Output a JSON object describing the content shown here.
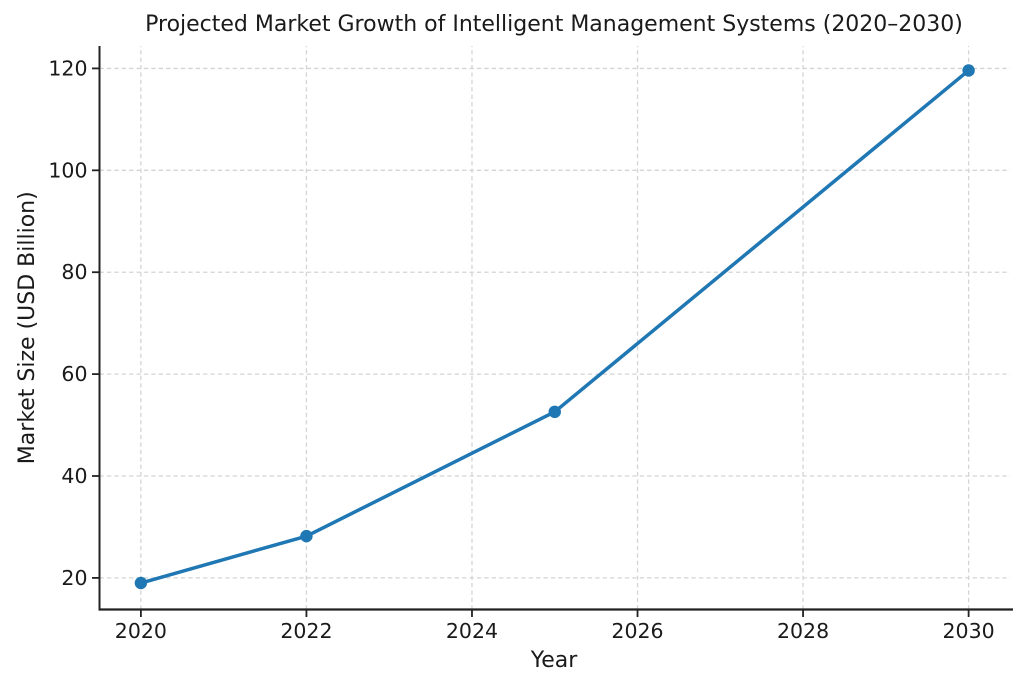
{
  "chart_data": {
    "type": "line",
    "title": "Projected Market Growth of Intelligent Management Systems (2020–2030)",
    "xlabel": "Year",
    "ylabel": "Market Size (USD Billion)",
    "x": [
      2020,
      2022,
      2025,
      2030
    ],
    "values": [
      19.0,
      28.2,
      52.6,
      119.6
    ],
    "x_ticks": [
      2020,
      2022,
      2024,
      2026,
      2028,
      2030
    ],
    "y_ticks": [
      20,
      40,
      60,
      80,
      100,
      120
    ],
    "xlim": [
      2019.5,
      2030.5
    ],
    "ylim": [
      13.8,
      124.4
    ],
    "grid": "dashed-both-axes",
    "legend": "none",
    "marker": "circle",
    "colors": {
      "line": "#1f77b4",
      "marker": "#1f77b4",
      "grid": "#d4d4d4",
      "axis": "#222222",
      "text": "#1a1a1a",
      "background": "#ffffff"
    }
  }
}
